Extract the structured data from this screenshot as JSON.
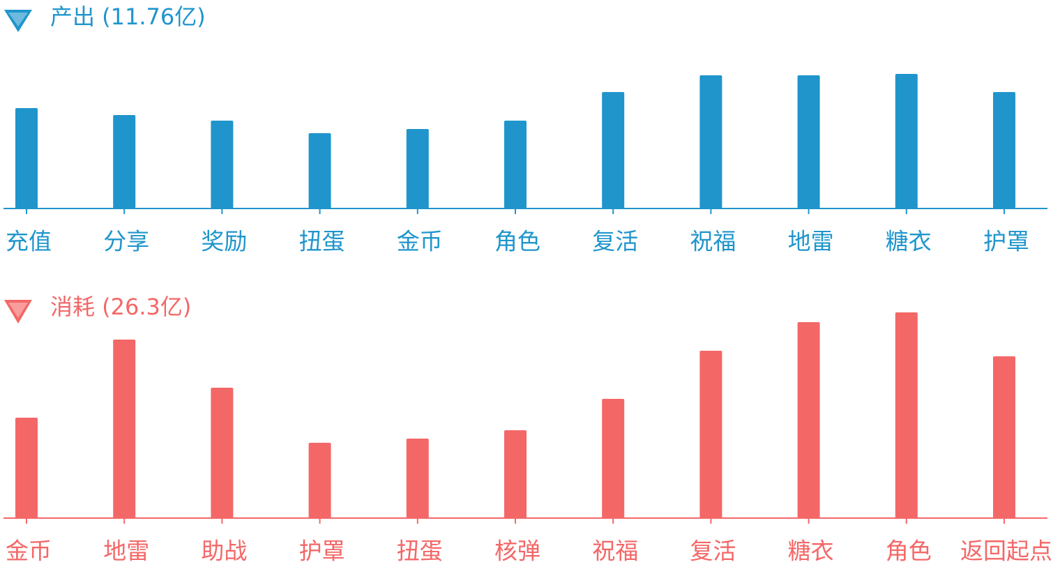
{
  "chart_data": [
    {
      "type": "bar",
      "title": "产出 (11.76亿)",
      "color": "#1f95cc",
      "categories": [
        "充值",
        "分享",
        "奖励",
        "扭蛋",
        "金币",
        "角色",
        "复活",
        "祝福",
        "地雷",
        "糖衣",
        "护罩"
      ],
      "values": [
        144,
        134,
        126,
        108,
        114,
        126,
        167,
        191,
        191,
        193,
        167
      ],
      "ylim": [
        0,
        300
      ]
    },
    {
      "type": "bar",
      "title": "消耗 (26.3亿)",
      "color": "#f46767",
      "categories": [
        "金币",
        "地雷",
        "助战",
        "护罩",
        "扭蛋",
        "核弹",
        "祝福",
        "复活",
        "糖衣",
        "角色",
        "返回起点"
      ],
      "values": [
        144,
        256,
        187,
        108,
        114,
        126,
        171,
        240,
        281,
        295,
        232
      ],
      "ylim": [
        0,
        300
      ]
    }
  ]
}
